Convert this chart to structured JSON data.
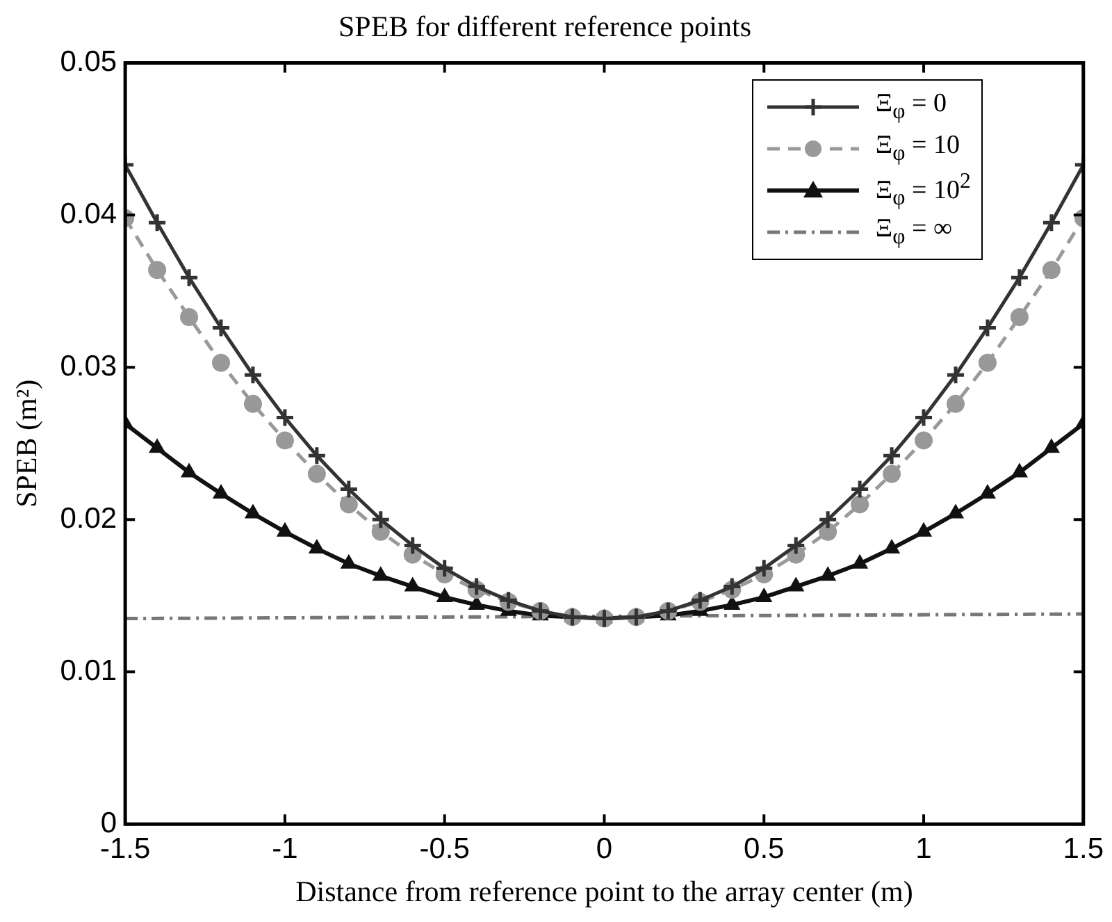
{
  "chart_data": {
    "type": "line",
    "title": "SPEB for different reference points",
    "xlabel": "Distance from reference point to the array center (m)",
    "ylabel": "SPEB (m²)",
    "x": [
      -1.5,
      -1.4,
      -1.3,
      -1.2,
      -1.1,
      -1.0,
      -0.9,
      -0.8,
      -0.7,
      -0.6,
      -0.5,
      -0.4,
      -0.3,
      -0.2,
      -0.1,
      0,
      0.1,
      0.2,
      0.3,
      0.4,
      0.5,
      0.6,
      0.7,
      0.8,
      0.9,
      1.0,
      1.1,
      1.2,
      1.3,
      1.4,
      1.5
    ],
    "series": [
      {
        "name": "Ξ$_{φ}$ = 0",
        "color": "#333333",
        "marker": "cross",
        "line_style": "solid",
        "values": [
          0.0433,
          0.0395,
          0.0359,
          0.0326,
          0.0295,
          0.0267,
          0.0242,
          0.022,
          0.02,
          0.0183,
          0.0168,
          0.0156,
          0.0147,
          0.014,
          0.0136,
          0.0135,
          0.0136,
          0.014,
          0.0147,
          0.0156,
          0.0168,
          0.0183,
          0.02,
          0.022,
          0.0242,
          0.0267,
          0.0295,
          0.0326,
          0.0359,
          0.0395,
          0.0433
        ]
      },
      {
        "name": "Ξ$_{φ}$ = 10",
        "color": "#999999",
        "marker": "circle",
        "line_style": "dashed",
        "values": [
          0.0398,
          0.0364,
          0.0333,
          0.0303,
          0.0276,
          0.0252,
          0.023,
          0.021,
          0.0192,
          0.0177,
          0.0164,
          0.0154,
          0.0146,
          0.014,
          0.0136,
          0.0135,
          0.0136,
          0.014,
          0.0146,
          0.0154,
          0.0164,
          0.0177,
          0.0192,
          0.021,
          0.023,
          0.0252,
          0.0276,
          0.0303,
          0.0333,
          0.0364,
          0.0398
        ]
      },
      {
        "name": "Ξ$_{φ}$ = 10$^{2}$",
        "color": "#111111",
        "marker": "triangle",
        "line_style": "solid",
        "values": [
          0.0263,
          0.0247,
          0.0231,
          0.0217,
          0.0204,
          0.0192,
          0.0181,
          0.0171,
          0.0163,
          0.0156,
          0.0149,
          0.0144,
          0.014,
          0.0137,
          0.0136,
          0.0135,
          0.0136,
          0.0137,
          0.014,
          0.0144,
          0.0149,
          0.0156,
          0.0163,
          0.0171,
          0.0181,
          0.0192,
          0.0204,
          0.0217,
          0.0231,
          0.0247,
          0.0263
        ]
      },
      {
        "name": "Ξ$_{φ}$ = ∞",
        "color": "#777777",
        "marker": "none",
        "line_style": "dashdot",
        "x": [
          -1.5,
          1.5
        ],
        "values": [
          0.0135,
          0.0138
        ]
      }
    ],
    "xlim": [
      -1.5,
      1.5
    ],
    "xticks": [
      -1.5,
      -1,
      -0.5,
      0,
      0.5,
      1,
      1.5
    ],
    "ylim": [
      0,
      0.05
    ],
    "yticks": [
      0,
      0.01,
      0.02,
      0.03,
      0.04,
      0.05
    ],
    "grid": false,
    "legend": "top right"
  }
}
